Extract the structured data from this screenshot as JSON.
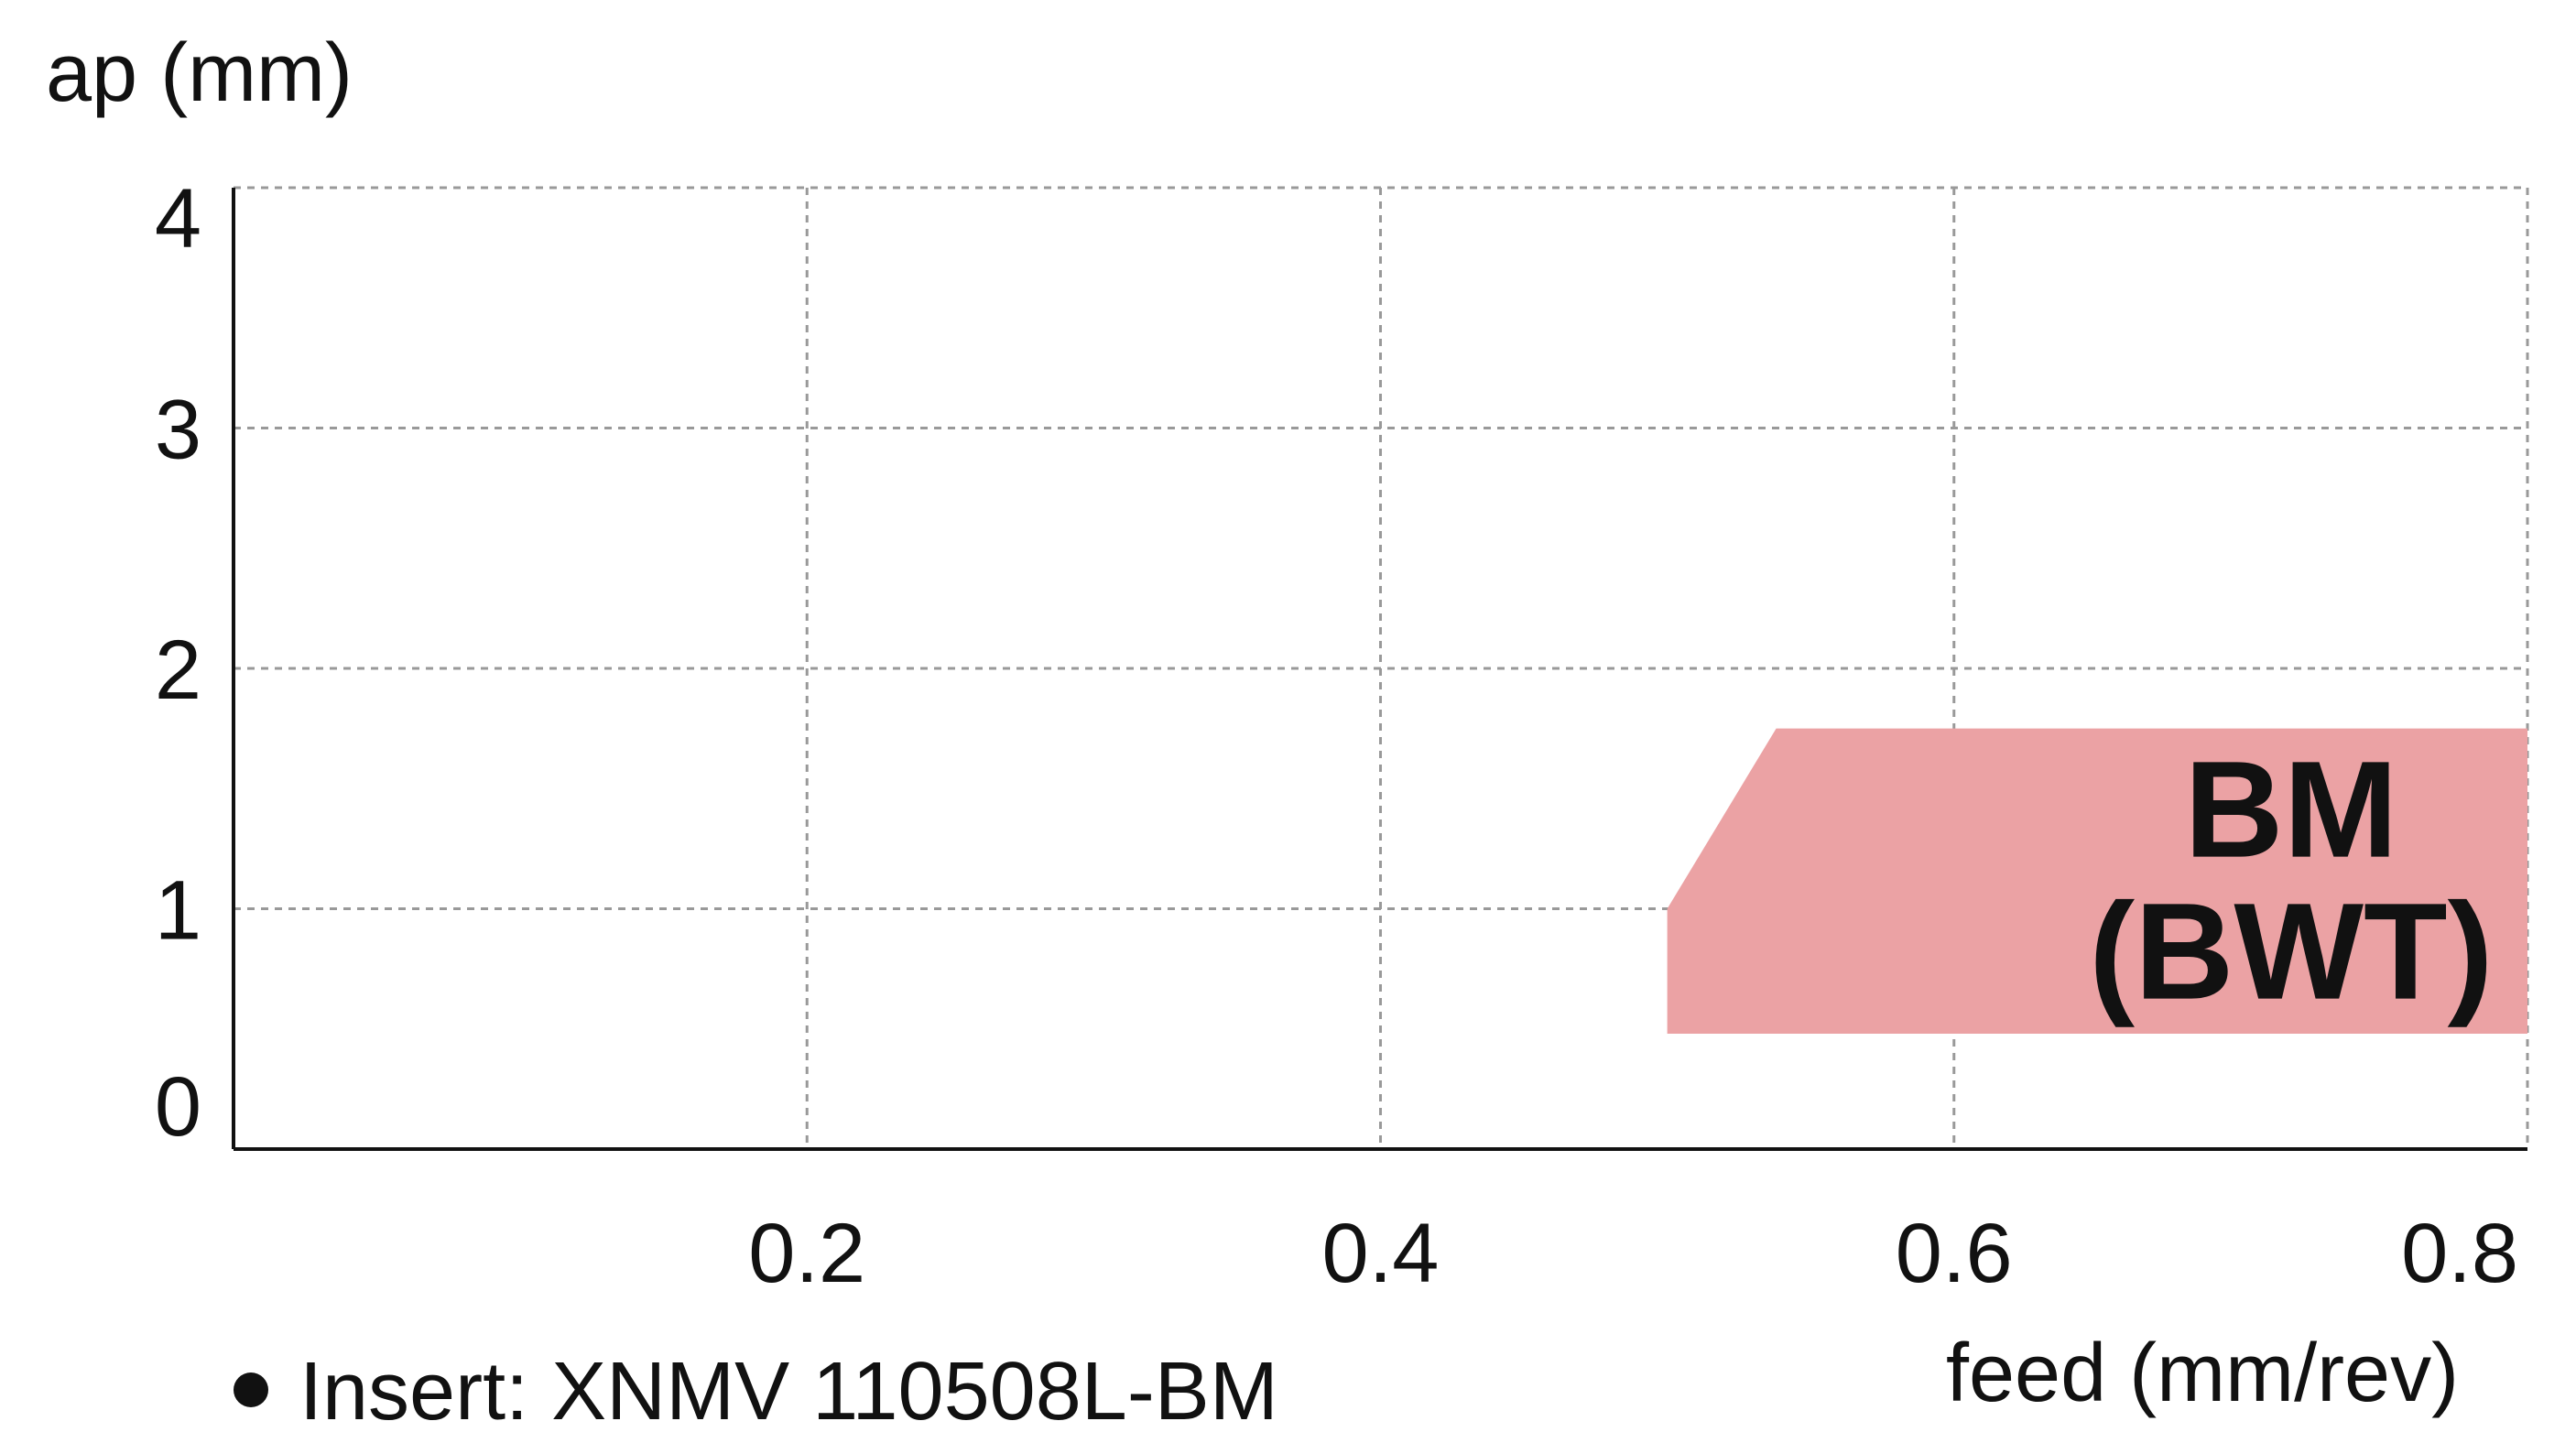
{
  "chart_data": {
    "type": "area",
    "xlabel": "feed (mm/rev)",
    "ylabel": "ap (mm)",
    "xlim": [
      0,
      0.8
    ],
    "ylim": [
      0,
      4
    ],
    "xticks": [
      0.2,
      0.4,
      0.6,
      0.8
    ],
    "xtick_labels": [
      "0.2",
      "0.4",
      "0.6",
      "0.8"
    ],
    "yticks": [
      0,
      1,
      2,
      3,
      4
    ],
    "ytick_labels": [
      "0",
      "1",
      "2",
      "3",
      "4"
    ],
    "grid": true,
    "regions": [
      {
        "label_line1": "BM",
        "label_line2": "(BWT)",
        "color": "#eba2a4",
        "polygon": [
          [
            0.5,
            0.48
          ],
          [
            0.8,
            0.48
          ],
          [
            0.8,
            1.75
          ],
          [
            0.538,
            1.75
          ],
          [
            0.5,
            1.0
          ]
        ]
      }
    ]
  },
  "note": "Insert: XNMV 110508L-BM",
  "colors": {
    "region_fill": "#eba2a4",
    "grid": "#999999",
    "axis": "#111111",
    "text": "#111111"
  }
}
